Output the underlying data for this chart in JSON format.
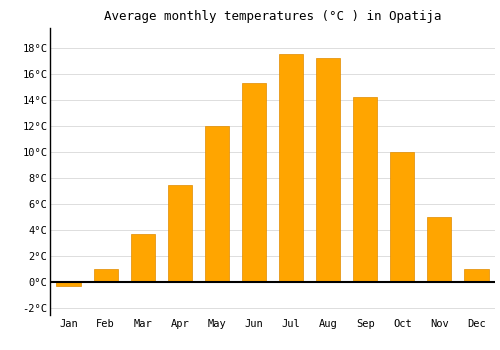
{
  "months": [
    "Jan",
    "Feb",
    "Mar",
    "Apr",
    "May",
    "Jun",
    "Jul",
    "Aug",
    "Sep",
    "Oct",
    "Nov",
    "Dec"
  ],
  "values": [
    -0.3,
    1.0,
    3.7,
    7.5,
    12.0,
    15.3,
    17.5,
    17.2,
    14.2,
    10.0,
    5.0,
    1.0
  ],
  "bar_color": "#FFA500",
  "bar_edge_color": "#E08C00",
  "title": "Average monthly temperatures (°C ) in Opatija",
  "ylim": [
    -2.5,
    19.5
  ],
  "yticks": [
    -2,
    0,
    2,
    4,
    6,
    8,
    10,
    12,
    14,
    16,
    18
  ],
  "background_color": "#ffffff",
  "grid_color": "#dddddd",
  "title_fontsize": 9,
  "tick_fontsize": 7.5,
  "font_family": "monospace"
}
